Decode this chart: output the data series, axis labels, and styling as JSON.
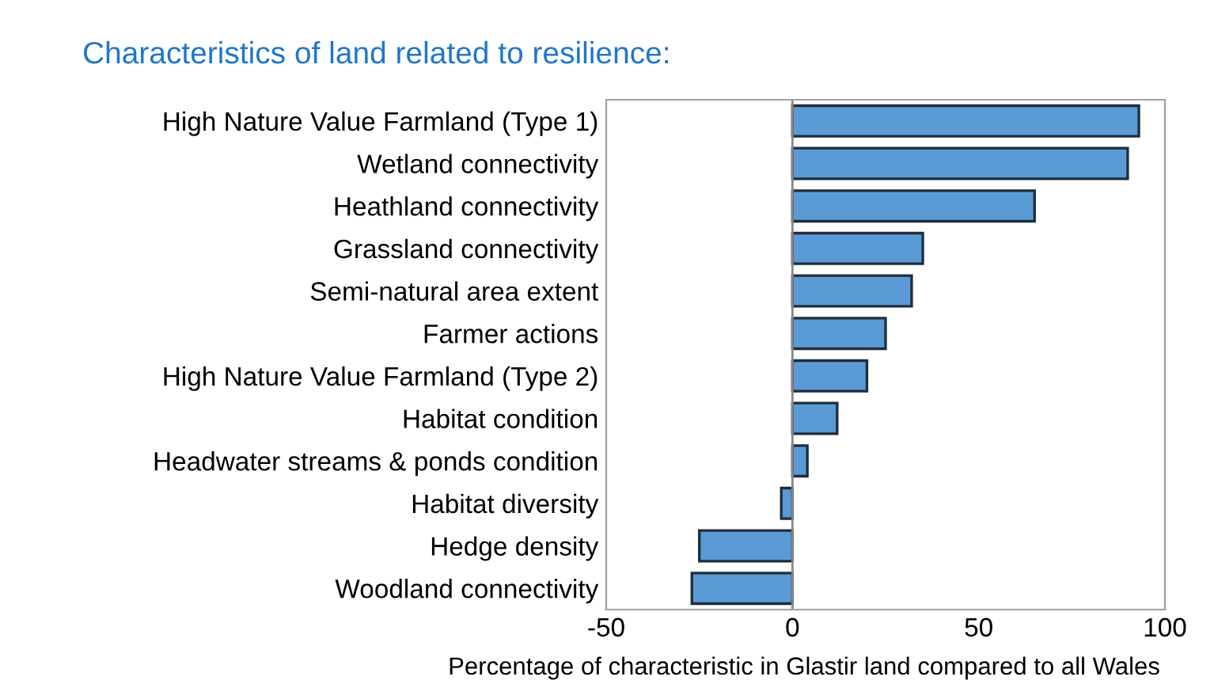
{
  "chart_data": {
    "type": "bar",
    "orientation": "horizontal",
    "title": "Characteristics of land related to resilience:",
    "xlabel": "Percentage of characteristic in Glastir land compared to all Wales",
    "categories": [
      "High Nature Value Farmland (Type 1)",
      "Wetland connectivity",
      "Heathland connectivity",
      "Grassland connectivity",
      "Semi-natural area extent",
      "Farmer actions",
      "High Nature Value Farmland (Type 2)",
      "Habitat condition",
      "Headwater streams & ponds condition",
      "Habitat diversity",
      "Hedge density",
      "Woodland connectivity"
    ],
    "values": [
      93,
      90,
      65,
      35,
      32,
      25,
      20,
      12,
      4,
      -3,
      -25,
      -27
    ],
    "color": "#5b9bd5",
    "xlim": [
      -50,
      100
    ],
    "xticks": [
      -50,
      0,
      50,
      100
    ],
    "grid": false,
    "ref_lines": [
      {
        "axis": "x",
        "value": 0,
        "color": "#888888"
      }
    ],
    "legend": false
  }
}
